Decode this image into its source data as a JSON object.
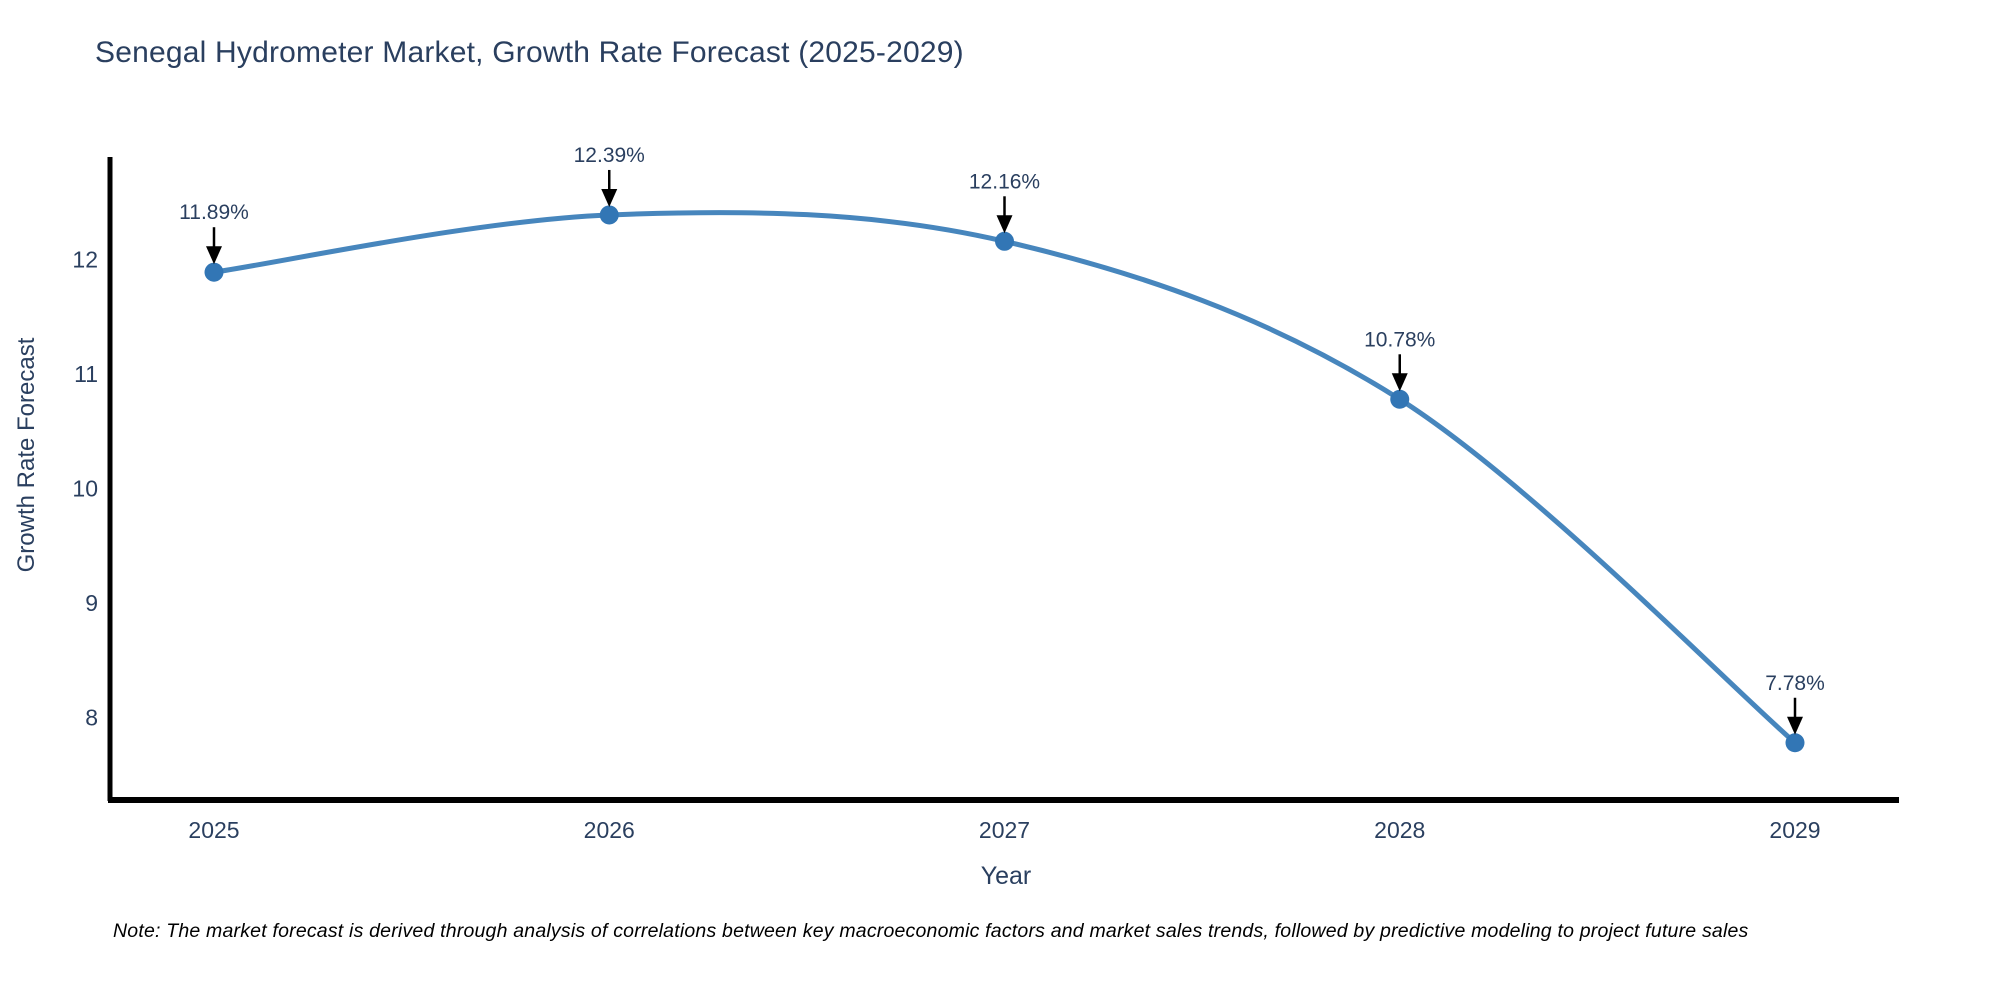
{
  "footnote": "Note: The market forecast is derived through analysis of correlations between key macroeconomic factors and market sales trends, followed by predictive modeling to project future sales",
  "chart_data": {
    "type": "line",
    "title": "Senegal Hydrometer Market, Growth Rate Forecast (2025-2029)",
    "xlabel": "Year",
    "ylabel": "Growth Rate Forecast",
    "categories": [
      "2025",
      "2026",
      "2027",
      "2028",
      "2029"
    ],
    "series": [
      {
        "name": "Growth Rate Forecast",
        "values": [
          11.89,
          12.39,
          12.16,
          10.78,
          7.78
        ]
      }
    ],
    "point_labels": [
      "11.89%",
      "12.39%",
      "12.16%",
      "10.78%",
      "7.78%"
    ],
    "line_shape": "spline",
    "markers": true,
    "grid": false,
    "legend": "none",
    "yticks": [
      8,
      9,
      10,
      11,
      12
    ],
    "ylim": [
      7.28,
      12.87
    ],
    "annotation_style": "label-above-with-down-arrow",
    "colors": {
      "line": "#4786bd",
      "marker": "#3276b5",
      "axis": "#000000",
      "tick_text": "#2a3f5f",
      "title_text": "#2a3f5f",
      "annotation_text": "#2a3f5f",
      "annotation_arrow": "#000000",
      "note_text": "#000000",
      "background": "#ffffff"
    }
  }
}
